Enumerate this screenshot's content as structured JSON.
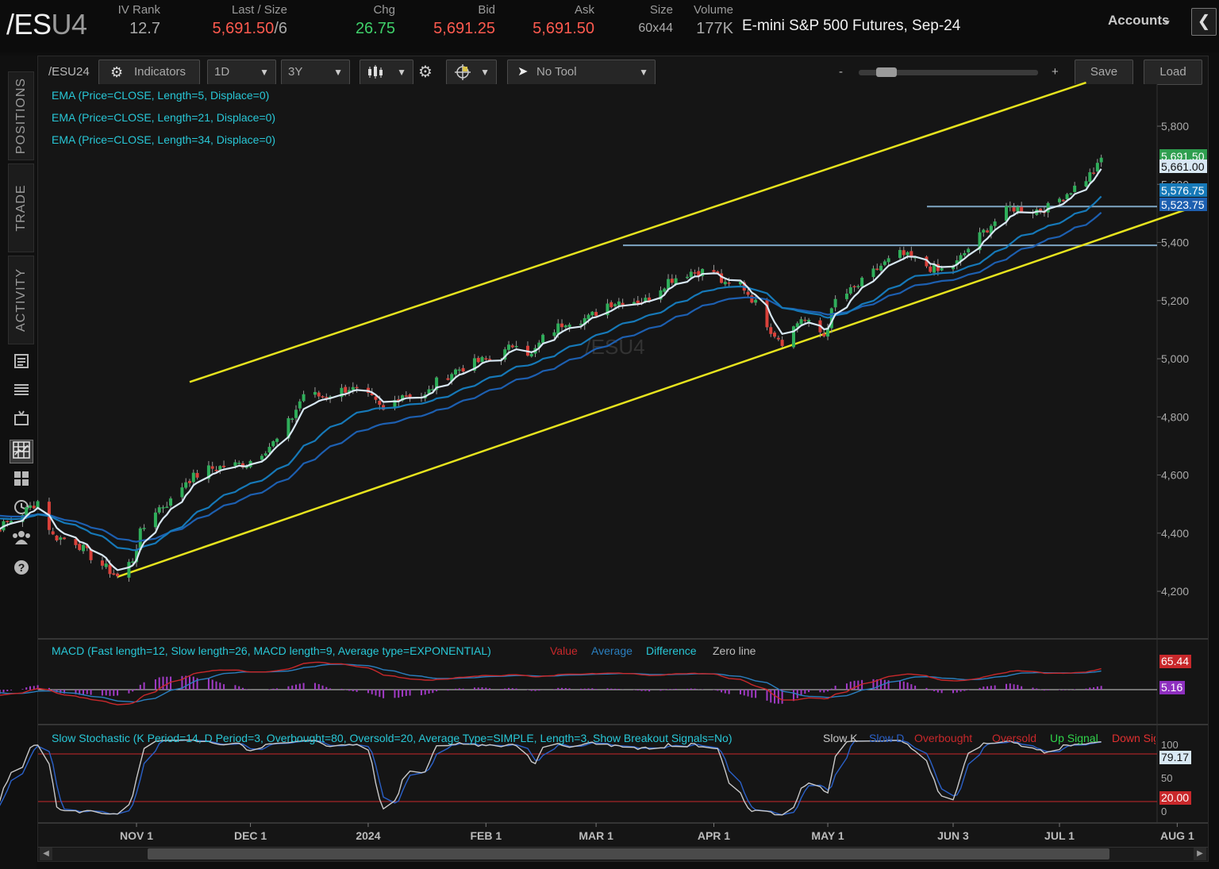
{
  "header": {
    "symbol_main": "/ES",
    "symbol_dim": "U4",
    "iv_rank_label": "IV Rank",
    "iv_rank": "12.7",
    "last_label": "Last / Size",
    "last": "5,691.50",
    "last_size": "/6",
    "chg_label": "Chg",
    "chg": "26.75",
    "bid_label": "Bid",
    "bid": "5,691.25",
    "ask_label": "Ask",
    "ask": "5,691.50",
    "size_label": "Size",
    "size": "60x44",
    "volume_label": "Volume",
    "volume": "177K",
    "description": "E-mini S&P 500 Futures, Sep-24",
    "accounts_label": "Accounts",
    "collapse_glyph": "❮"
  },
  "rail": {
    "tabs": [
      "POSITIONS",
      "TRADE",
      "ACTIVITY"
    ],
    "icons": [
      "news-icon",
      "list-icon",
      "tv-icon",
      "chart-icon",
      "grid-icon",
      "history-icon",
      "community-icon",
      "help-icon"
    ]
  },
  "toolbar": {
    "symbol": "/ESU24",
    "indicators": "Indicators",
    "interval": "1D",
    "range": "3Y",
    "tool": "No Tool",
    "zoom_minus": "-",
    "zoom_plus": "+",
    "save": "Save",
    "load": "Load"
  },
  "chart_data": {
    "type": "candlestick",
    "symbol_watermark": "/ESU4",
    "x_ticks": [
      "NOV 1",
      "DEC 1",
      "2024",
      "FEB 1",
      "MAR 1",
      "APR 1",
      "MAY 1",
      "JUN 3",
      "JUL 1",
      "AUG 1"
    ],
    "y_ticks": [
      "5,800",
      "5,600",
      "5,400",
      "5,200",
      "5,000",
      "4,800",
      "4,600",
      "4,400",
      "4,200"
    ],
    "ylim": [
      4050,
      5950
    ],
    "ema_legends": [
      "EMA (Price=CLOSE, Length=5, Displace=0)",
      "EMA (Price=CLOSE, Length=21, Displace=0)",
      "EMA (Price=CLOSE, Length=34, Displace=0)"
    ],
    "price_badges": [
      {
        "text": "5,691.50",
        "value": 5691.5,
        "color": "#2f9e4f"
      },
      {
        "text": "5,661.00",
        "value": 5661,
        "color": "#d8e8f4"
      },
      {
        "text": "5,576.75",
        "value": 5576.75,
        "color": "#1679b8"
      },
      {
        "text": "5,523.75",
        "value": 5523.75,
        "color": "#1d5fb0"
      }
    ],
    "horizontal_levels": [
      5523.75,
      5390
    ],
    "trend_channel": {
      "upper": [
        [
          "2023-11-15",
          4920
        ],
        [
          "2024-07-08",
          5950
        ]
      ],
      "lower": [
        [
          "2023-10-27",
          4250
        ],
        [
          "2024-08-06",
          5525
        ]
      ]
    },
    "close_path": [
      [
        "2023-09-18",
        4480
      ],
      [
        "2023-09-22",
        4390
      ],
      [
        "2023-09-26",
        4420
      ],
      [
        "2023-10-02",
        4470
      ],
      [
        "2023-10-06",
        4510
      ],
      [
        "2023-10-10",
        4390
      ],
      [
        "2023-10-16",
        4370
      ],
      [
        "2023-10-20",
        4320
      ],
      [
        "2023-10-24",
        4280
      ],
      [
        "2023-10-27",
        4250
      ],
      [
        "2023-10-31",
        4310
      ],
      [
        "2023-11-02",
        4400
      ],
      [
        "2023-11-06",
        4480
      ],
      [
        "2023-11-10",
        4510
      ],
      [
        "2023-11-14",
        4580
      ],
      [
        "2023-11-20",
        4620
      ],
      [
        "2023-11-24",
        4630
      ],
      [
        "2023-11-30",
        4640
      ],
      [
        "2023-12-04",
        4680
      ],
      [
        "2023-12-08",
        4720
      ],
      [
        "2023-12-12",
        4800
      ],
      [
        "2023-12-15",
        4880
      ],
      [
        "2023-12-20",
        4870
      ],
      [
        "2023-12-27",
        4900
      ],
      [
        "2024-01-02",
        4860
      ],
      [
        "2024-01-05",
        4820
      ],
      [
        "2024-01-10",
        4880
      ],
      [
        "2024-01-16",
        4870
      ],
      [
        "2024-01-19",
        4920
      ],
      [
        "2024-01-24",
        4960
      ],
      [
        "2024-01-30",
        4990
      ],
      [
        "2024-02-05",
        5010
      ],
      [
        "2024-02-09",
        5060
      ],
      [
        "2024-02-13",
        5010
      ],
      [
        "2024-02-16",
        5070
      ],
      [
        "2024-02-22",
        5130
      ],
      [
        "2024-02-28",
        5140
      ],
      [
        "2024-03-04",
        5190
      ],
      [
        "2024-03-08",
        5200
      ],
      [
        "2024-03-14",
        5200
      ],
      [
        "2024-03-20",
        5270
      ],
      [
        "2024-03-26",
        5300
      ],
      [
        "2024-04-01",
        5300
      ],
      [
        "2024-04-04",
        5250
      ],
      [
        "2024-04-08",
        5260
      ],
      [
        "2024-04-12",
        5190
      ],
      [
        "2024-04-16",
        5100
      ],
      [
        "2024-04-19",
        5060
      ],
      [
        "2024-04-24",
        5140
      ],
      [
        "2024-04-30",
        5080
      ],
      [
        "2024-05-03",
        5200
      ],
      [
        "2024-05-08",
        5240
      ],
      [
        "2024-05-15",
        5320
      ],
      [
        "2024-05-20",
        5360
      ],
      [
        "2024-05-24",
        5340
      ],
      [
        "2024-05-30",
        5300
      ],
      [
        "2024-06-04",
        5330
      ],
      [
        "2024-06-07",
        5380
      ],
      [
        "2024-06-12",
        5450
      ],
      [
        "2024-06-18",
        5520
      ],
      [
        "2024-06-24",
        5510
      ],
      [
        "2024-06-28",
        5520
      ],
      [
        "2024-07-03",
        5570
      ],
      [
        "2024-07-08",
        5620
      ],
      [
        "2024-07-11",
        5660
      ],
      [
        "2024-07-12",
        5691.5
      ]
    ],
    "macd": {
      "legend": "MACD (Fast length=12, Slow length=26, MACD length=9, Average type=EXPONENTIAL)",
      "series_labels": [
        "Value",
        "Average",
        "Difference",
        "Zero line"
      ],
      "badges": [
        "65.44",
        "5.16"
      ]
    },
    "stochastic": {
      "legend": "Slow Stochastic (K Period=14, D Period=3, Overbought=80, Oversold=20, Average Type=SIMPLE, Length=3, Show Breakout Signals=No)",
      "series_labels": [
        "Slow K",
        "Slow D",
        "Overbought",
        "Oversold",
        "Up Signal",
        "Down Signal"
      ],
      "y_ticks": [
        "100",
        "50",
        "0"
      ],
      "badges": [
        "79.17",
        "20.00"
      ],
      "overbought": 80,
      "oversold": 20
    }
  }
}
